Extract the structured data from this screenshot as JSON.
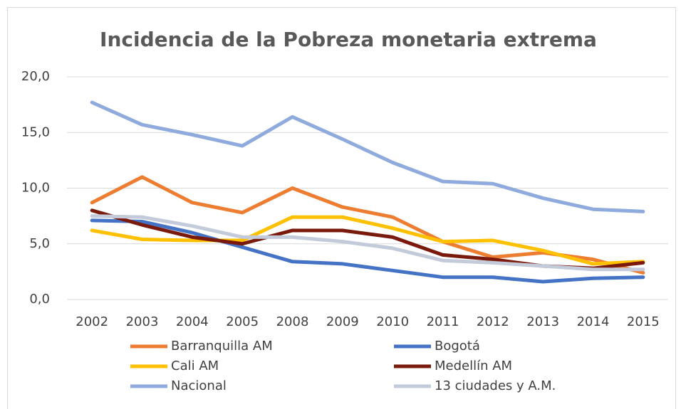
{
  "chart_data": {
    "type": "line",
    "title": "Incidencia de la Pobreza monetaria extrema",
    "categories": [
      "2002",
      "2003",
      "2004",
      "2005",
      "2008",
      "2009",
      "2010",
      "2011",
      "2012",
      "2013",
      "2014",
      "2015"
    ],
    "series": [
      {
        "name": "Barranquilla AM",
        "color": "#ED7D31",
        "values": [
          8.7,
          11.0,
          8.7,
          7.8,
          10.0,
          8.3,
          7.4,
          5.2,
          3.8,
          4.2,
          3.6,
          2.4
        ]
      },
      {
        "name": "Bogotá",
        "color": "#4472C4",
        "values": [
          7.1,
          7.0,
          6.0,
          4.7,
          3.4,
          3.2,
          2.6,
          2.0,
          2.0,
          1.6,
          1.9,
          2.0
        ]
      },
      {
        "name": "Cali AM",
        "color": "#FFC000",
        "values": [
          6.2,
          5.4,
          5.3,
          5.3,
          7.4,
          7.4,
          6.4,
          5.2,
          5.3,
          4.4,
          3.2,
          3.4
        ]
      },
      {
        "name": "Medellín AM",
        "color": "#7A1A0C",
        "values": [
          8.0,
          6.7,
          5.6,
          5.0,
          6.2,
          6.2,
          5.6,
          4.0,
          3.6,
          3.0,
          2.8,
          3.3
        ]
      },
      {
        "name": "Nacional",
        "color": "#8FAADC",
        "values": [
          17.7,
          15.7,
          14.8,
          13.8,
          16.4,
          14.4,
          12.3,
          10.6,
          10.4,
          9.1,
          8.1,
          7.9
        ]
      },
      {
        "name": "13 ciudades y A.M.",
        "color": "#C3CAD9",
        "values": [
          7.5,
          7.4,
          6.6,
          5.6,
          5.6,
          5.2,
          4.6,
          3.5,
          3.3,
          3.0,
          2.7,
          2.7
        ]
      }
    ],
    "ylim": [
      0,
      20
    ],
    "yticks": [
      {
        "value": 0,
        "label": "0,0"
      },
      {
        "value": 5,
        "label": "5,0"
      },
      {
        "value": 10,
        "label": "10,0"
      },
      {
        "value": 15,
        "label": "15,0"
      },
      {
        "value": 20,
        "label": "20,0"
      }
    ],
    "grid": true
  }
}
